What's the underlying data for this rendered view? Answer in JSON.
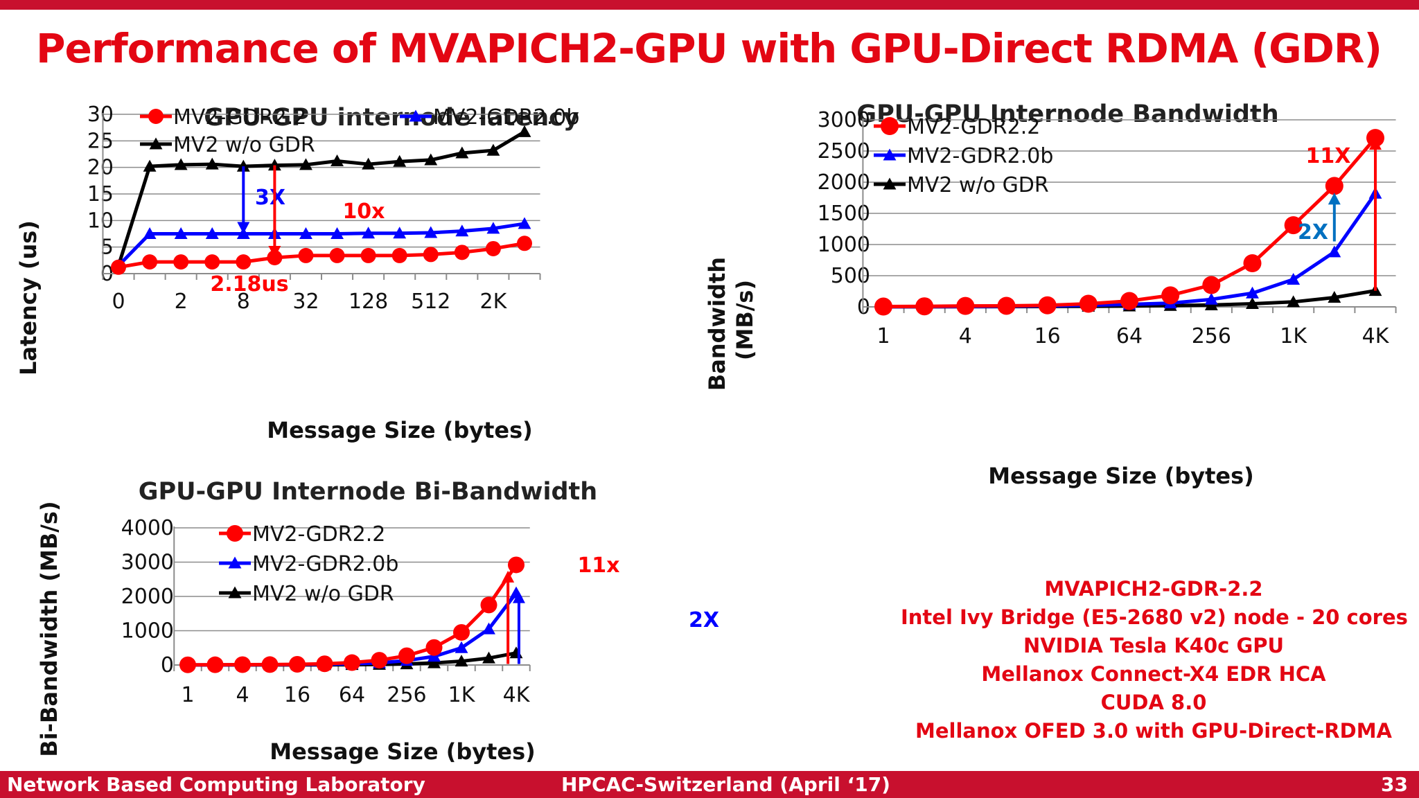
{
  "slide": {
    "title": "Performance of MVAPICH2-GPU with GPU-Direct RDMA (GDR)",
    "specs": [
      "MVAPICH2-GDR-2.2",
      "Intel Ivy Bridge (E5-2680 v2) node - 20 cores",
      "NVIDIA Tesla K40c GPU",
      "Mellanox Connect-X4 EDR HCA",
      "CUDA 8.0",
      "Mellanox OFED 3.0 with GPU-Direct-RDMA"
    ],
    "footer": {
      "left": "Network Based Computing Laboratory",
      "center": "HPCAC-Switzerland (April ‘17)",
      "right": "33"
    }
  },
  "colors": {
    "red": "#ff0000",
    "blue": "#0000ff",
    "black": "#000000",
    "accent": "#e30613",
    "bar": "#c8102e"
  },
  "chart_data": [
    {
      "type": "line",
      "title": "GPU-GPU  internode latency",
      "xlabel": "Message Size (bytes)",
      "ylabel": "Latency (us)",
      "ylim": [
        0,
        30
      ],
      "yticks": [
        0,
        5,
        10,
        15,
        20,
        25,
        30
      ],
      "x_positions": 14,
      "xtick_labels": [
        {
          "i": 0,
          "label": "0"
        },
        {
          "i": 2,
          "label": "2"
        },
        {
          "i": 4,
          "label": "8"
        },
        {
          "i": 6,
          "label": "32"
        },
        {
          "i": 8,
          "label": "128"
        },
        {
          "i": 10,
          "label": "512"
        },
        {
          "i": 12,
          "label": "2K"
        }
      ],
      "grid": true,
      "legend": "top",
      "series": [
        {
          "name": "MV2-GDR2.2",
          "color": "#ff0000",
          "marker": "circle",
          "values": [
            1.2,
            2.2,
            2.2,
            2.2,
            2.2,
            3.0,
            3.4,
            3.4,
            3.4,
            3.4,
            3.6,
            4.0,
            4.7,
            5.7
          ]
        },
        {
          "name": "MV2-GDR2.0b",
          "color": "#0000ff",
          "marker": "triangle",
          "values": [
            1.5,
            7.5,
            7.5,
            7.5,
            7.5,
            7.5,
            7.5,
            7.5,
            7.6,
            7.6,
            7.7,
            8.0,
            8.5,
            9.4
          ]
        },
        {
          "name": "MV2 w/o GDR",
          "color": "#000000",
          "marker": "triangle",
          "values": [
            1.5,
            20.2,
            20.5,
            20.6,
            20.2,
            20.4,
            20.5,
            21.2,
            20.6,
            21.1,
            21.4,
            22.7,
            23.2,
            26.7
          ]
        }
      ],
      "annotations": [
        {
          "text": "3X",
          "color": "#0000ff",
          "arrow_x": 4,
          "arrow_from": 20.2,
          "arrow_to": 7.5
        },
        {
          "text": "10x",
          "color": "#ff0000",
          "arrow_x": 5,
          "arrow_from": 20.4,
          "arrow_to": 3.0
        },
        {
          "text": "2.18us",
          "color": "#ff0000"
        }
      ]
    },
    {
      "type": "line",
      "title": "GPU-GPU Internode Bandwidth",
      "xlabel": "Message Size (bytes)",
      "ylabel": "Bandwidth\n(MB/s)",
      "ylim": [
        0,
        3000
      ],
      "yticks": [
        0,
        500,
        1000,
        1500,
        2000,
        2500,
        3000
      ],
      "x_positions": 13,
      "xtick_labels": [
        {
          "i": 0,
          "label": "1"
        },
        {
          "i": 2,
          "label": "4"
        },
        {
          "i": 4,
          "label": "16"
        },
        {
          "i": 6,
          "label": "64"
        },
        {
          "i": 8,
          "label": "256"
        },
        {
          "i": 10,
          "label": "1K"
        },
        {
          "i": 12,
          "label": "4K"
        }
      ],
      "grid": true,
      "legend": "top-left",
      "series": [
        {
          "name": "MV2-GDR2.2",
          "color": "#ff0000",
          "marker": "circle",
          "values": [
            5,
            9,
            15,
            17,
            25,
            50,
            95,
            185,
            350,
            700,
            1310,
            1940,
            2710
          ]
        },
        {
          "name": "MV2-GDR2.0b",
          "color": "#0000ff",
          "marker": "triangle",
          "values": [
            2,
            4,
            6,
            10,
            15,
            25,
            40,
            60,
            120,
            220,
            440,
            880,
            1820
          ]
        },
        {
          "name": "MV2 w/o GDR",
          "color": "#000000",
          "marker": "triangle",
          "values": [
            1,
            2,
            3,
            4,
            6,
            8,
            12,
            20,
            30,
            50,
            80,
            150,
            260
          ]
        }
      ],
      "annotations": [
        {
          "text": "11X",
          "color": "#ff0000",
          "arrow_x": 12,
          "arrow_from": 260,
          "arrow_to": 2710
        },
        {
          "text": "2X",
          "color": "#0070c0",
          "arrow_x": 11,
          "arrow_from": 1050,
          "arrow_to": 1830
        }
      ]
    },
    {
      "type": "line",
      "title": "GPU-GPU Internode Bi-Bandwidth",
      "xlabel": "Message Size (bytes)",
      "ylabel": "Bi-Bandwidth (MB/s)",
      "ylim": [
        0,
        4000
      ],
      "yticks": [
        0,
        1000,
        2000,
        3000,
        4000
      ],
      "x_positions": 13,
      "xtick_labels": [
        {
          "i": 0,
          "label": "1"
        },
        {
          "i": 2,
          "label": "4"
        },
        {
          "i": 4,
          "label": "16"
        },
        {
          "i": 6,
          "label": "64"
        },
        {
          "i": 8,
          "label": "256"
        },
        {
          "i": 10,
          "label": "1K"
        },
        {
          "i": 12,
          "label": "4K"
        }
      ],
      "grid": true,
      "legend": "top-left",
      "series": [
        {
          "name": "MV2-GDR2.2",
          "color": "#ff0000",
          "marker": "circle",
          "values": [
            5,
            7,
            10,
            12,
            20,
            35,
            70,
            140,
            270,
            510,
            950,
            1750,
            2920
          ]
        },
        {
          "name": "MV2-GDR2.0b",
          "color": "#0000ff",
          "marker": "triangle",
          "values": [
            2,
            3,
            5,
            8,
            12,
            20,
            35,
            60,
            130,
            250,
            500,
            1050,
            2100
          ]
        },
        {
          "name": "MV2 w/o GDR",
          "color": "#000000",
          "marker": "triangle",
          "values": [
            1,
            1,
            2,
            2,
            3,
            5,
            8,
            15,
            30,
            60,
            110,
            200,
            350
          ]
        }
      ],
      "annotations": [
        {
          "text": "11x",
          "color": "#ff0000",
          "arrow_x": 11.7,
          "arrow_from": 30,
          "arrow_to": 2750
        },
        {
          "text": "2X",
          "color": "#0000ff",
          "arrow_x": 12.1,
          "arrow_from": 30,
          "arrow_to": 2150
        }
      ]
    }
  ]
}
